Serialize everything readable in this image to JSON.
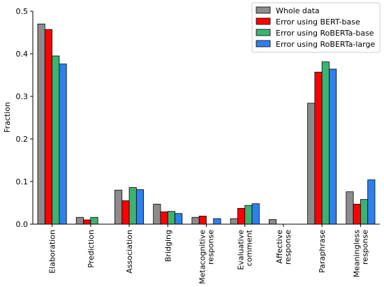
{
  "chart_data": {
    "type": "bar",
    "title": "",
    "xlabel": "",
    "ylabel": "Fraction",
    "ylim": [
      0,
      0.5
    ],
    "yticks": [
      "0.0",
      "0.1",
      "0.2",
      "0.3",
      "0.4",
      "0.5"
    ],
    "grid": false,
    "legend_position": "top-right",
    "categories": [
      [
        "Elaboration"
      ],
      [
        "Prediction"
      ],
      [
        "Association"
      ],
      [
        "Bridging"
      ],
      [
        "Metacognitive",
        "response"
      ],
      [
        "Evaluative",
        "comment"
      ],
      [
        "Affective",
        "response"
      ],
      [
        "Paraphrase"
      ],
      [
        "Meaningless",
        "response"
      ]
    ],
    "series": [
      {
        "name": "Whole data",
        "color": "#8c8c8c",
        "values": [
          0.47,
          0.016,
          0.08,
          0.047,
          0.016,
          0.013,
          0.011,
          0.284,
          0.076
        ]
      },
      {
        "name": "Error using BERT-base",
        "color": "#b22222",
        "fill": "#ff0000",
        "values": [
          0.457,
          0.01,
          0.055,
          0.029,
          0.019,
          0.037,
          0.0,
          0.357,
          0.047
        ]
      },
      {
        "name": "Error using RoBERTa-base",
        "color": "#2e8b57",
        "fill": "#3cb371",
        "values": [
          0.395,
          0.016,
          0.086,
          0.03,
          0.0,
          0.044,
          0.0,
          0.381,
          0.058
        ]
      },
      {
        "name": "Error using RoBERTa-large",
        "color": "#1e5bc6",
        "fill": "#2f80ed",
        "values": [
          0.376,
          0.0,
          0.081,
          0.025,
          0.013,
          0.048,
          0.0,
          0.364,
          0.104
        ]
      }
    ]
  }
}
